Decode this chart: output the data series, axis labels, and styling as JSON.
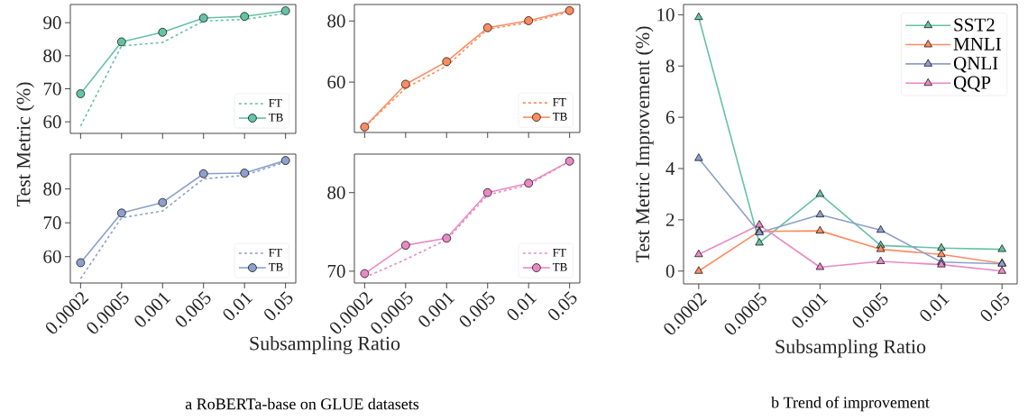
{
  "chart_data": [
    {
      "type": "line",
      "ylabel": "Test Metric (%)",
      "categories": [
        "0.0002",
        "0.0005",
        "0.001",
        "0.005",
        "0.01",
        "0.05"
      ],
      "ylim": [
        56.5,
        95.5
      ],
      "yticks": [
        60,
        70,
        80,
        90
      ],
      "tick_labels": "y",
      "legend": "bottom right",
      "annotations": [
        "a RoBERTa-base on GLUE datasets"
      ],
      "series": [
        {
          "name": "FT",
          "color": "#66c2a5",
          "line_style": "dashed",
          "marker": "none",
          "values": [
            58.7,
            83,
            84,
            90.5,
            91,
            92.8
          ]
        },
        {
          "name": "TB",
          "color": "#66c2a5",
          "line_style": "solid",
          "marker": "circle",
          "values": [
            68.5,
            84.2,
            87.1,
            91.4,
            91.9,
            93.6
          ]
        }
      ]
    },
    {
      "type": "line",
      "categories": [
        "0.0002",
        "0.0005",
        "0.001",
        "0.005",
        "0.01",
        "0.05"
      ],
      "ylim": [
        43.5,
        85.4
      ],
      "yticks": [
        60,
        80
      ],
      "tick_labels": "y",
      "legend": "bottom right",
      "series": [
        {
          "name": "FT",
          "color": "#fc8d62",
          "line_style": "dashed",
          "marker": "none",
          "values": [
            45.3,
            58,
            65.3,
            77.3,
            79.5,
            83
          ]
        },
        {
          "name": "TB",
          "color": "#fc8d62",
          "line_style": "solid",
          "marker": "circle",
          "values": [
            45.3,
            59.3,
            66.7,
            77.8,
            80.1,
            83.4
          ]
        }
      ]
    },
    {
      "type": "line",
      "xlabel": "Subsampling Ratio",
      "categories": [
        "0.0002",
        "0.0005",
        "0.001",
        "0.005",
        "0.01",
        "0.05"
      ],
      "ylim": [
        52.2,
        90.3
      ],
      "yticks": [
        60,
        70,
        80
      ],
      "legend": "bottom right",
      "series": [
        {
          "name": "FT",
          "color": "#8da0cb",
          "line_style": "dashed",
          "marker": "none",
          "values": [
            53.5,
            71.5,
            73.5,
            83,
            84,
            88
          ]
        },
        {
          "name": "TB",
          "color": "#8da0cb",
          "line_style": "solid",
          "marker": "circle",
          "values": [
            58.2,
            72.9,
            76,
            84.5,
            84.7,
            88.4
          ]
        }
      ]
    },
    {
      "type": "line",
      "categories": [
        "0.0002",
        "0.0005",
        "0.001",
        "0.005",
        "0.01",
        "0.05"
      ],
      "ylim": [
        68.5,
        84.9
      ],
      "yticks": [
        70,
        80
      ],
      "legend": "bottom right",
      "series": [
        {
          "name": "FT",
          "color": "#e78ac3",
          "line_style": "dashed",
          "marker": "none",
          "values": [
            69.2,
            71.5,
            74,
            79.7,
            81,
            84
          ]
        },
        {
          "name": "TB",
          "color": "#e78ac3",
          "line_style": "solid",
          "marker": "circle",
          "values": [
            69.7,
            73.3,
            74.2,
            80,
            81.2,
            84
          ]
        }
      ]
    },
    {
      "type": "line",
      "xlabel": "Subsampling Ratio",
      "ylabel": "Test Metric Improvement (%)",
      "categories": [
        "0.0002",
        "0.0005",
        "0.001",
        "0.005",
        "0.01",
        "0.05"
      ],
      "ylim": [
        -0.5,
        10.4
      ],
      "yticks": [
        0,
        2,
        4,
        6,
        8,
        10
      ],
      "legend": "top right",
      "marker": "triangle",
      "annotations": [
        "b Trend of improvement"
      ],
      "series": [
        {
          "name": "SST2",
          "color": "#66c2a5",
          "values": [
            9.9,
            1.1,
            3.0,
            1.0,
            0.9,
            0.85
          ]
        },
        {
          "name": "MNLI",
          "color": "#fc8d62",
          "values": [
            0.0,
            1.55,
            1.57,
            0.85,
            0.65,
            0.3
          ]
        },
        {
          "name": "QNLI",
          "color": "#8da0cb",
          "values": [
            4.4,
            1.5,
            2.2,
            1.6,
            0.35,
            0.28
          ]
        },
        {
          "name": "QQP",
          "color": "#e78ac3",
          "values": [
            0.65,
            1.8,
            0.15,
            0.38,
            0.25,
            0.0
          ]
        }
      ]
    }
  ]
}
